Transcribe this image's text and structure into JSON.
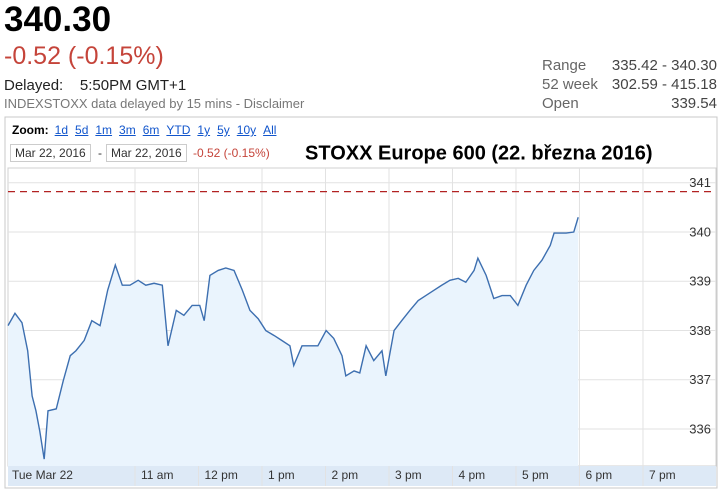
{
  "header": {
    "price": "340.30",
    "change": "-0.52 (-0.15%)",
    "delayed_label": "Delayed:",
    "delayed_time": "5:50PM GMT+1",
    "note": "INDEXSTOXX data delayed by 15 mins - Disclaimer"
  },
  "stats": [
    {
      "label": "Range",
      "value": "335.42 - 340.30"
    },
    {
      "label": "52 week",
      "value": "302.59 - 415.18"
    },
    {
      "label": "Open",
      "value": "339.54"
    }
  ],
  "controls": {
    "zoom_label": "Zoom:",
    "zoom_links": [
      "1d",
      "5d",
      "1m",
      "3m",
      "6m",
      "YTD",
      "1y",
      "5y",
      "10y",
      "All"
    ],
    "date_from": "Mar 22, 2016",
    "separator": "-",
    "date_to": "Mar 22, 2016",
    "range_change": "-0.52 (-0.15%)"
  },
  "chart_data": {
    "type": "line",
    "title": "STOXX Europe 600 (22. března 2016)",
    "x": [
      9.0,
      9.11,
      9.22,
      9.31,
      9.38,
      9.44,
      9.5,
      9.57,
      9.63,
      9.76,
      9.87,
      9.98,
      10.07,
      10.2,
      10.32,
      10.45,
      10.57,
      10.69,
      10.8,
      10.92,
      11.05,
      11.17,
      11.3,
      11.43,
      11.52,
      11.65,
      11.77,
      11.9,
      12.02,
      12.09,
      12.18,
      12.31,
      12.43,
      12.56,
      12.69,
      12.81,
      12.94,
      13.06,
      13.19,
      13.31,
      13.44,
      13.5,
      13.63,
      13.76,
      13.88,
      14.01,
      14.13,
      14.26,
      14.32,
      14.45,
      14.54,
      14.64,
      14.76,
      14.89,
      14.95,
      15.08,
      15.2,
      15.33,
      15.46,
      15.58,
      15.71,
      15.83,
      15.96,
      16.09,
      16.21,
      16.34,
      16.4,
      16.53,
      16.65,
      16.78,
      16.91,
      17.03,
      17.16,
      17.28,
      17.41,
      17.54,
      17.6,
      17.79,
      17.91,
      17.98
    ],
    "series": [
      {
        "name": "STOXX Europe 600",
        "color": "#3d6fb0",
        "area_color": "#eaf4fd",
        "values": [
          338.1,
          338.35,
          338.16,
          337.59,
          336.67,
          336.37,
          335.96,
          335.39,
          336.37,
          336.41,
          336.98,
          337.49,
          337.59,
          337.8,
          338.2,
          338.1,
          338.82,
          339.33,
          338.92,
          338.92,
          339.02,
          338.92,
          338.96,
          338.92,
          337.69,
          338.41,
          338.31,
          338.51,
          338.51,
          338.2,
          339.12,
          339.22,
          339.27,
          339.22,
          338.82,
          338.41,
          338.24,
          338.0,
          337.9,
          337.8,
          337.69,
          337.29,
          337.69,
          337.69,
          337.69,
          338.0,
          337.84,
          337.49,
          337.08,
          337.18,
          337.14,
          337.69,
          337.39,
          337.59,
          337.08,
          338.0,
          338.2,
          338.41,
          338.61,
          338.71,
          338.82,
          338.92,
          339.02,
          339.06,
          338.98,
          339.22,
          339.47,
          339.12,
          338.65,
          338.71,
          338.71,
          338.51,
          338.92,
          339.22,
          339.43,
          339.73,
          339.98,
          339.98,
          340.0,
          340.3
        ]
      }
    ],
    "previous_close": 340.82,
    "previous_close_color": "#b22222",
    "xlim": [
      9,
      20.15
    ],
    "xticks": [
      {
        "value": 9,
        "label": "Tue Mar 22"
      },
      {
        "value": 11,
        "label": "11 am"
      },
      {
        "value": 12,
        "label": "12 pm"
      },
      {
        "value": 13,
        "label": "1 pm"
      },
      {
        "value": 14,
        "label": "2 pm"
      },
      {
        "value": 15,
        "label": "3 pm"
      },
      {
        "value": 16,
        "label": "4 pm"
      },
      {
        "value": 17,
        "label": "5 pm"
      },
      {
        "value": 18,
        "label": "6 pm"
      },
      {
        "value": 19,
        "label": "7 pm"
      }
    ],
    "ylim": [
      335.25,
      341.3
    ],
    "yticks": [
      336,
      337,
      338,
      339,
      340,
      341
    ],
    "grid": true
  }
}
